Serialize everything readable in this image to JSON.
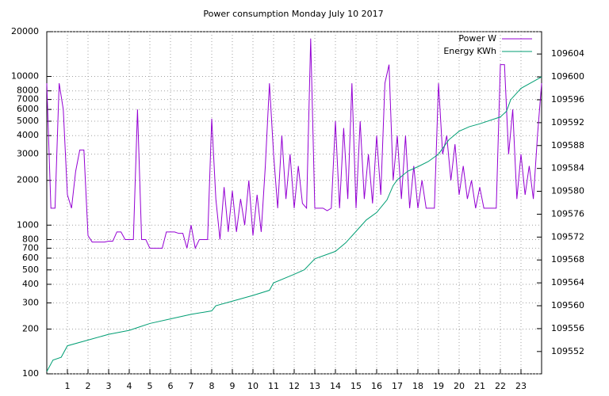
{
  "chart_data": {
    "type": "line",
    "title": "Power consumption Monday July 10 2017",
    "xlim": [
      0,
      24
    ],
    "xticks": [
      1,
      2,
      3,
      4,
      5,
      6,
      7,
      8,
      9,
      10,
      11,
      12,
      13,
      14,
      15,
      16,
      17,
      18,
      19,
      20,
      21,
      22,
      23
    ],
    "ylim": [
      100,
      20000
    ],
    "log_y": true,
    "yticks": [
      100,
      200,
      300,
      400,
      500,
      600,
      700,
      800,
      1000,
      2000,
      3000,
      4000,
      5000,
      6000,
      7000,
      8000,
      10000,
      20000
    ],
    "y2lim": [
      109548.1,
      109607.9
    ],
    "y2ticks": [
      109552,
      109556,
      109560,
      109564,
      109568,
      109572,
      109576,
      109580,
      109584,
      109588,
      109592,
      109596,
      109600,
      109604
    ],
    "grid": true,
    "legend": "top-right",
    "series": [
      {
        "name": "Power W",
        "color": "#9400d3",
        "x": [
          0,
          0.2,
          0.4,
          0.6,
          0.8,
          1,
          1.2,
          1.4,
          1.6,
          1.8,
          2,
          2.2,
          2.4,
          2.6,
          2.8,
          3,
          3.2,
          3.4,
          3.6,
          3.8,
          4,
          4.2,
          4.4,
          4.6,
          4.8,
          5,
          5.2,
          5.4,
          5.6,
          5.8,
          6,
          6.2,
          6.4,
          6.6,
          6.8,
          7,
          7.2,
          7.4,
          7.6,
          7.8,
          8,
          8.2,
          8.4,
          8.6,
          8.8,
          9,
          9.2,
          9.4,
          9.6,
          9.8,
          10,
          10.2,
          10.4,
          10.6,
          10.8,
          11,
          11.2,
          11.4,
          11.6,
          11.8,
          12,
          12.2,
          12.4,
          12.6,
          12.8,
          13,
          13.2,
          13.4,
          13.6,
          13.8,
          14,
          14.2,
          14.4,
          14.6,
          14.8,
          15,
          15.2,
          15.4,
          15.6,
          15.8,
          16,
          16.2,
          16.4,
          16.6,
          16.8,
          17,
          17.2,
          17.4,
          17.6,
          17.8,
          18,
          18.2,
          18.4,
          18.6,
          18.8,
          19,
          19.2,
          19.4,
          19.6,
          19.8,
          20,
          20.2,
          20.4,
          20.6,
          20.8,
          21,
          21.2,
          21.4,
          21.6,
          21.8,
          22,
          22.2,
          22.4,
          22.6,
          22.8,
          23,
          23.2,
          23.4,
          23.6,
          23.8,
          24
        ],
        "values": [
          9000,
          1300,
          1300,
          9000,
          6000,
          1600,
          1300,
          2300,
          3200,
          3200,
          850,
          770,
          770,
          770,
          770,
          780,
          780,
          900,
          900,
          800,
          800,
          800,
          6000,
          800,
          800,
          700,
          700,
          700,
          700,
          900,
          900,
          900,
          880,
          880,
          700,
          1000,
          700,
          800,
          800,
          800,
          5200,
          1500,
          800,
          1800,
          900,
          1700,
          900,
          1500,
          1000,
          2000,
          850,
          1600,
          900,
          2500,
          9000,
          3000,
          1300,
          4000,
          1500,
          3000,
          1300,
          2500,
          1400,
          1300,
          18000,
          1300,
          1300,
          1300,
          1250,
          1300,
          5000,
          1300,
          4500,
          1500,
          9000,
          1300,
          5000,
          1500,
          3000,
          1400,
          4000,
          1600,
          9000,
          12000,
          2000,
          4000,
          1500,
          4000,
          1300,
          2500,
          1300,
          2000,
          1300,
          1300,
          1300,
          9000,
          3000,
          4000,
          2000,
          3500,
          1600,
          2500,
          1500,
          2000,
          1300,
          1800,
          1300,
          1300,
          1300,
          1300,
          12000,
          12000,
          3000,
          6000,
          1500,
          3000,
          1600,
          2500,
          1500,
          4000,
          9000
        ]
      },
      {
        "name": "Energy KWh",
        "color": "#009e73",
        "axis": "y2",
        "x": [
          0,
          0.3,
          0.7,
          1,
          2,
          3,
          4,
          4.5,
          5,
          6,
          7,
          8,
          8.2,
          9,
          10,
          10.8,
          11,
          12,
          12.5,
          13,
          14,
          14.5,
          15,
          15.5,
          16,
          16.5,
          16.8,
          17,
          17.5,
          18,
          18.5,
          19,
          19.5,
          20,
          20.5,
          21,
          22,
          22.3,
          22.5,
          23,
          23.5,
          24
        ],
        "values": [
          109548.5,
          109550.5,
          109551,
          109553,
          109554,
          109555,
          109555.7,
          109556.3,
          109556.9,
          109557.7,
          109558.5,
          109559.1,
          109560,
          109560.8,
          109561.8,
          109562.7,
          109564,
          109565.5,
          109566.3,
          109568.2,
          109569.5,
          109571,
          109573,
          109575,
          109576.3,
          109578.5,
          109581,
          109582,
          109583.5,
          109584.3,
          109585.2,
          109586.5,
          109589,
          109590.5,
          109591.3,
          109591.8,
          109593,
          109594,
          109596,
          109598,
          109599,
          109600
        ]
      }
    ]
  }
}
